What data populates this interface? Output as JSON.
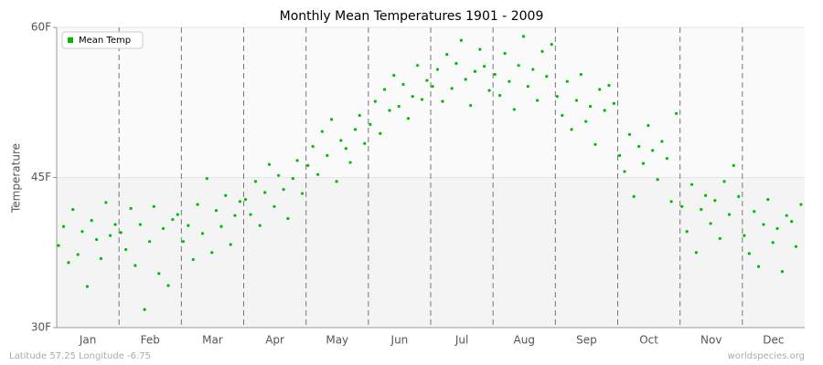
{
  "chart_data": {
    "type": "scatter",
    "title": "Monthly Mean Temperatures 1901 - 2009",
    "y_label": "Temperature",
    "footer_left": "Latitude 57.25 Longitude -6.75",
    "footer_right": "worldspecies.org",
    "xlim": [
      0,
      12
    ],
    "xticks": [
      {
        "value": 0.5,
        "label": "Jan"
      },
      {
        "value": 1.5,
        "label": "Feb"
      },
      {
        "value": 2.5,
        "label": "Mar"
      },
      {
        "value": 3.5,
        "label": "Apr"
      },
      {
        "value": 4.5,
        "label": "May"
      },
      {
        "value": 5.5,
        "label": "Jun"
      },
      {
        "value": 6.5,
        "label": "Jul"
      },
      {
        "value": 7.5,
        "label": "Aug"
      },
      {
        "value": 8.5,
        "label": "Sep"
      },
      {
        "value": 9.5,
        "label": "Oct"
      },
      {
        "value": 10.5,
        "label": "Nov"
      },
      {
        "value": 11.5,
        "label": "Dec"
      }
    ],
    "ylim": [
      30,
      60
    ],
    "yticks": [
      {
        "value": 30,
        "label": "30F"
      },
      {
        "value": 45,
        "label": "45F"
      },
      {
        "value": 60,
        "label": "60F"
      }
    ],
    "grid": true,
    "legend": "top-left",
    "x": [
      0.03,
      0.11,
      0.19,
      0.26,
      0.34,
      0.41,
      0.49,
      0.56,
      0.64,
      0.71,
      0.79,
      0.86,
      0.94,
      1.03,
      1.11,
      1.19,
      1.26,
      1.34,
      1.41,
      1.49,
      1.56,
      1.64,
      1.71,
      1.79,
      1.86,
      1.94,
      2.03,
      2.11,
      2.19,
      2.26,
      2.34,
      2.41,
      2.49,
      2.56,
      2.64,
      2.71,
      2.79,
      2.86,
      2.94,
      3.03,
      3.11,
      3.19,
      3.26,
      3.34,
      3.41,
      3.49,
      3.56,
      3.64,
      3.71,
      3.79,
      3.86,
      3.94,
      4.03,
      4.11,
      4.19,
      4.26,
      4.34,
      4.41,
      4.49,
      4.56,
      4.64,
      4.71,
      4.79,
      4.86,
      4.94,
      5.03,
      5.11,
      5.19,
      5.26,
      5.34,
      5.41,
      5.49,
      5.56,
      5.64,
      5.71,
      5.79,
      5.86,
      5.94,
      6.03,
      6.11,
      6.19,
      6.26,
      6.34,
      6.41,
      6.49,
      6.56,
      6.64,
      6.71,
      6.79,
      6.86,
      6.94,
      7.03,
      7.11,
      7.19,
      7.26,
      7.34,
      7.41,
      7.49,
      7.56,
      7.64,
      7.71,
      7.79,
      7.86,
      7.94,
      8.03,
      8.11,
      8.19,
      8.26,
      8.34,
      8.41,
      8.49,
      8.56,
      8.64,
      8.71,
      8.79,
      8.86,
      8.94,
      9.03,
      9.11,
      9.19,
      9.26,
      9.34,
      9.41,
      9.49,
      9.56,
      9.64,
      9.71,
      9.79,
      9.86,
      9.94,
      10.03,
      10.11,
      10.19,
      10.26,
      10.34,
      10.41,
      10.49,
      10.56,
      10.64,
      10.71,
      10.79,
      10.86,
      10.94,
      11.03,
      11.11,
      11.19,
      11.26,
      11.34,
      11.41,
      11.49,
      11.56,
      11.64,
      11.71,
      11.79,
      11.86,
      11.94
    ],
    "series": [
      {
        "name": "Mean Temp",
        "color": "#00bb00",
        "values": [
          38.2,
          40.1,
          36.5,
          41.8,
          37.3,
          39.6,
          34.1,
          40.7,
          38.8,
          36.9,
          42.5,
          39.2,
          40.3,
          39.5,
          37.8,
          41.9,
          36.2,
          40.3,
          31.8,
          38.6,
          42.1,
          35.4,
          39.9,
          34.2,
          40.8,
          41.3,
          38.6,
          40.2,
          36.8,
          42.3,
          39.4,
          44.9,
          37.5,
          41.7,
          40.1,
          43.2,
          38.3,
          41.2,
          42.6,
          42.8,
          41.3,
          44.6,
          40.2,
          43.5,
          46.3,
          42.1,
          45.2,
          43.8,
          40.9,
          44.9,
          46.7,
          43.4,
          46.2,
          48.1,
          45.3,
          49.6,
          47.2,
          50.8,
          44.6,
          48.7,
          47.9,
          46.5,
          49.8,
          51.2,
          48.4,
          50.3,
          52.6,
          49.4,
          53.8,
          51.7,
          55.2,
          52.1,
          54.3,
          50.9,
          53.1,
          56.2,
          52.8,
          54.7,
          54.1,
          55.8,
          52.6,
          57.3,
          53.9,
          56.4,
          58.7,
          54.8,
          52.2,
          55.6,
          57.8,
          56.1,
          53.7,
          55.3,
          53.2,
          57.4,
          54.6,
          51.8,
          56.2,
          59.1,
          54.1,
          55.8,
          52.7,
          57.6,
          55.1,
          58.3,
          53.1,
          51.2,
          54.6,
          49.8,
          52.7,
          55.3,
          50.6,
          52.1,
          48.3,
          53.8,
          51.7,
          54.2,
          52.4,
          47.2,
          45.6,
          49.3,
          43.1,
          48.1,
          46.4,
          50.2,
          47.7,
          44.8,
          48.6,
          46.9,
          42.6,
          51.4,
          42.1,
          39.6,
          44.3,
          37.5,
          41.8,
          43.2,
          40.4,
          42.7,
          38.9,
          44.6,
          41.3,
          46.2,
          43.1,
          39.2,
          37.4,
          41.6,
          36.1,
          40.3,
          42.8,
          38.5,
          39.9,
          35.6,
          41.2,
          40.6,
          38.1,
          42.3
        ]
      }
    ]
  }
}
